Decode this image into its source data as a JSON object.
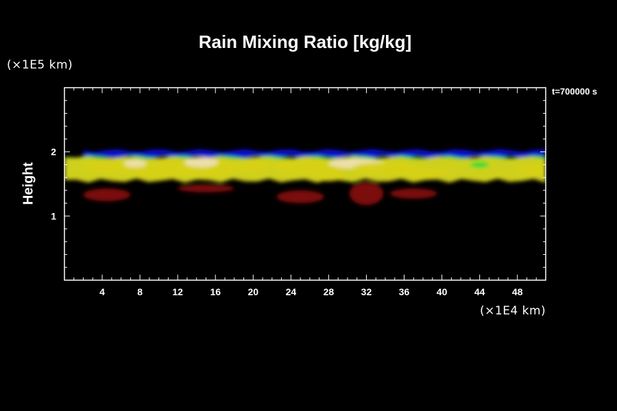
{
  "chart_data": {
    "type": "heatmap",
    "title": "Rain Mixing Ratio [kg/kg]",
    "xlabel": "",
    "ylabel": "Height",
    "x_unit": "(×1E4 km)",
    "y_unit": "(×1E5 km)",
    "time_label": "t=700000 s",
    "xlim": [
      0,
      51
    ],
    "ylim": [
      0,
      3
    ],
    "x_ticks": [
      4,
      8,
      12,
      16,
      20,
      24,
      28,
      32,
      36,
      40,
      44,
      48
    ],
    "y_ticks": [
      1,
      2
    ],
    "colors": {
      "background": "#000000",
      "axis": "#ffffff",
      "top_band": "#0a10d8",
      "edge": "#22dd33",
      "core": "#d8d01a",
      "peak": "#f0e0b8",
      "lower": "#8a0a0a"
    },
    "bands": [
      {
        "name": "top",
        "x_range": [
          2,
          51
        ],
        "y_range": [
          1.92,
          2.02
        ],
        "color_key": "top_band"
      },
      {
        "name": "edge",
        "x_range": [
          0,
          51
        ],
        "y_range": [
          1.58,
          1.92
        ],
        "color_key": "edge"
      },
      {
        "name": "core",
        "x_range": [
          0,
          51
        ],
        "y_range": [
          1.55,
          1.9
        ],
        "color_key": "core"
      },
      {
        "name": "lower",
        "x_range": [
          2,
          41
        ],
        "y_range": [
          1.15,
          1.55
        ],
        "color_key": "lower"
      }
    ],
    "blobs": [
      {
        "x": 5.5,
        "y": 1.78,
        "rx": 3.5,
        "ry": 0.12,
        "color_key": "core"
      },
      {
        "x": 10.0,
        "y": 1.74,
        "rx": 3.5,
        "ry": 0.14,
        "color_key": "core"
      },
      {
        "x": 15.0,
        "y": 1.75,
        "rx": 3.2,
        "ry": 0.15,
        "color_key": "core"
      },
      {
        "x": 14.5,
        "y": 1.84,
        "rx": 1.8,
        "ry": 0.08,
        "color_key": "peak"
      },
      {
        "x": 7.5,
        "y": 1.82,
        "rx": 1.2,
        "ry": 0.06,
        "color_key": "peak"
      },
      {
        "x": 19.5,
        "y": 1.78,
        "rx": 2.2,
        "ry": 0.1,
        "color_key": "core"
      },
      {
        "x": 26.0,
        "y": 1.76,
        "rx": 4.0,
        "ry": 0.12,
        "color_key": "core"
      },
      {
        "x": 28.0,
        "y": 1.62,
        "rx": 1.5,
        "ry": 0.08,
        "color_key": "core"
      },
      {
        "x": 31.0,
        "y": 1.82,
        "rx": 3.0,
        "ry": 0.08,
        "color_key": "peak"
      },
      {
        "x": 34.0,
        "y": 1.74,
        "rx": 3.5,
        "ry": 0.1,
        "color_key": "core"
      },
      {
        "x": 38.0,
        "y": 1.68,
        "rx": 2.8,
        "ry": 0.08,
        "color_key": "core"
      },
      {
        "x": 49.5,
        "y": 1.72,
        "rx": 1.5,
        "ry": 0.08,
        "color_key": "core"
      },
      {
        "x": 4.5,
        "y": 1.33,
        "rx": 2.5,
        "ry": 0.1,
        "color_key": "lower"
      },
      {
        "x": 15.0,
        "y": 1.43,
        "rx": 3.0,
        "ry": 0.06,
        "color_key": "lower"
      },
      {
        "x": 25.0,
        "y": 1.3,
        "rx": 2.5,
        "ry": 0.1,
        "color_key": "lower"
      },
      {
        "x": 32.0,
        "y": 1.35,
        "rx": 1.8,
        "ry": 0.18,
        "color_key": "lower"
      },
      {
        "x": 37.0,
        "y": 1.35,
        "rx": 2.5,
        "ry": 0.08,
        "color_key": "lower"
      },
      {
        "x": 44.0,
        "y": 1.8,
        "rx": 1.0,
        "ry": 0.05,
        "color_key": "edge"
      }
    ]
  }
}
